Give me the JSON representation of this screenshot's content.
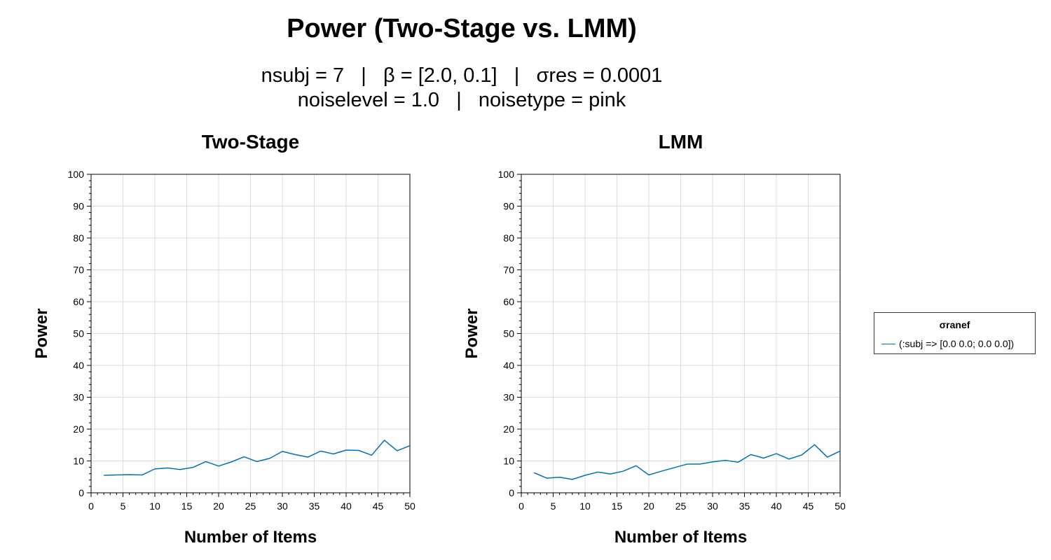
{
  "title": "Power (Two-Stage vs. LMM)",
  "subtitle": {
    "line1": "nsubj = 7   |   β = [2.0, 0.1]   |   σres = 0.0001",
    "line2": "noiselevel = 1.0   |   noisetype = pink"
  },
  "legend": {
    "title": "σranef",
    "entries": [
      {
        "label": "(:subj => [0.0 0.0; 0.0 0.0])",
        "color": "#0072B2"
      }
    ]
  },
  "chart_data": [
    {
      "type": "line",
      "title": "Two-Stage",
      "xlabel": "Number of Items",
      "ylabel": "Power",
      "xlim": [
        0,
        50
      ],
      "ylim": [
        0,
        100
      ],
      "xticks": [
        0,
        5,
        10,
        15,
        20,
        25,
        30,
        35,
        40,
        45,
        50
      ],
      "yticks": [
        0,
        10,
        20,
        30,
        40,
        50,
        60,
        70,
        80,
        90,
        100
      ],
      "grid": true,
      "series": [
        {
          "color": "#0072B2",
          "x": [
            2,
            4,
            6,
            8,
            10,
            12,
            14,
            16,
            18,
            20,
            22,
            24,
            26,
            28,
            30,
            32,
            34,
            36,
            38,
            40,
            42,
            44,
            46,
            48,
            50
          ],
          "y": [
            5.5,
            5.6,
            5.7,
            5.6,
            7.5,
            7.8,
            7.3,
            8.0,
            9.8,
            8.4,
            9.7,
            11.3,
            9.8,
            10.8,
            13.0,
            12.0,
            11.2,
            13.1,
            12.2,
            13.4,
            13.3,
            11.8,
            16.5,
            13.2,
            14.8
          ]
        }
      ]
    },
    {
      "type": "line",
      "title": "LMM",
      "xlabel": "Number of Items",
      "ylabel": "Power",
      "xlim": [
        0,
        50
      ],
      "ylim": [
        0,
        100
      ],
      "xticks": [
        0,
        5,
        10,
        15,
        20,
        25,
        30,
        35,
        40,
        45,
        50
      ],
      "yticks": [
        0,
        10,
        20,
        30,
        40,
        50,
        60,
        70,
        80,
        90,
        100
      ],
      "grid": true,
      "series": [
        {
          "color": "#0072B2",
          "x": [
            2,
            4,
            6,
            8,
            10,
            12,
            14,
            16,
            18,
            20,
            22,
            24,
            26,
            28,
            30,
            32,
            34,
            36,
            38,
            40,
            42,
            44,
            46,
            48,
            50
          ],
          "y": [
            6.3,
            4.6,
            4.9,
            4.2,
            5.5,
            6.5,
            5.9,
            6.8,
            8.5,
            5.6,
            6.8,
            7.9,
            9.0,
            9.0,
            9.7,
            10.2,
            9.6,
            12.0,
            10.9,
            12.3,
            10.6,
            11.9,
            15.1,
            11.2,
            13.1
          ]
        }
      ]
    }
  ]
}
